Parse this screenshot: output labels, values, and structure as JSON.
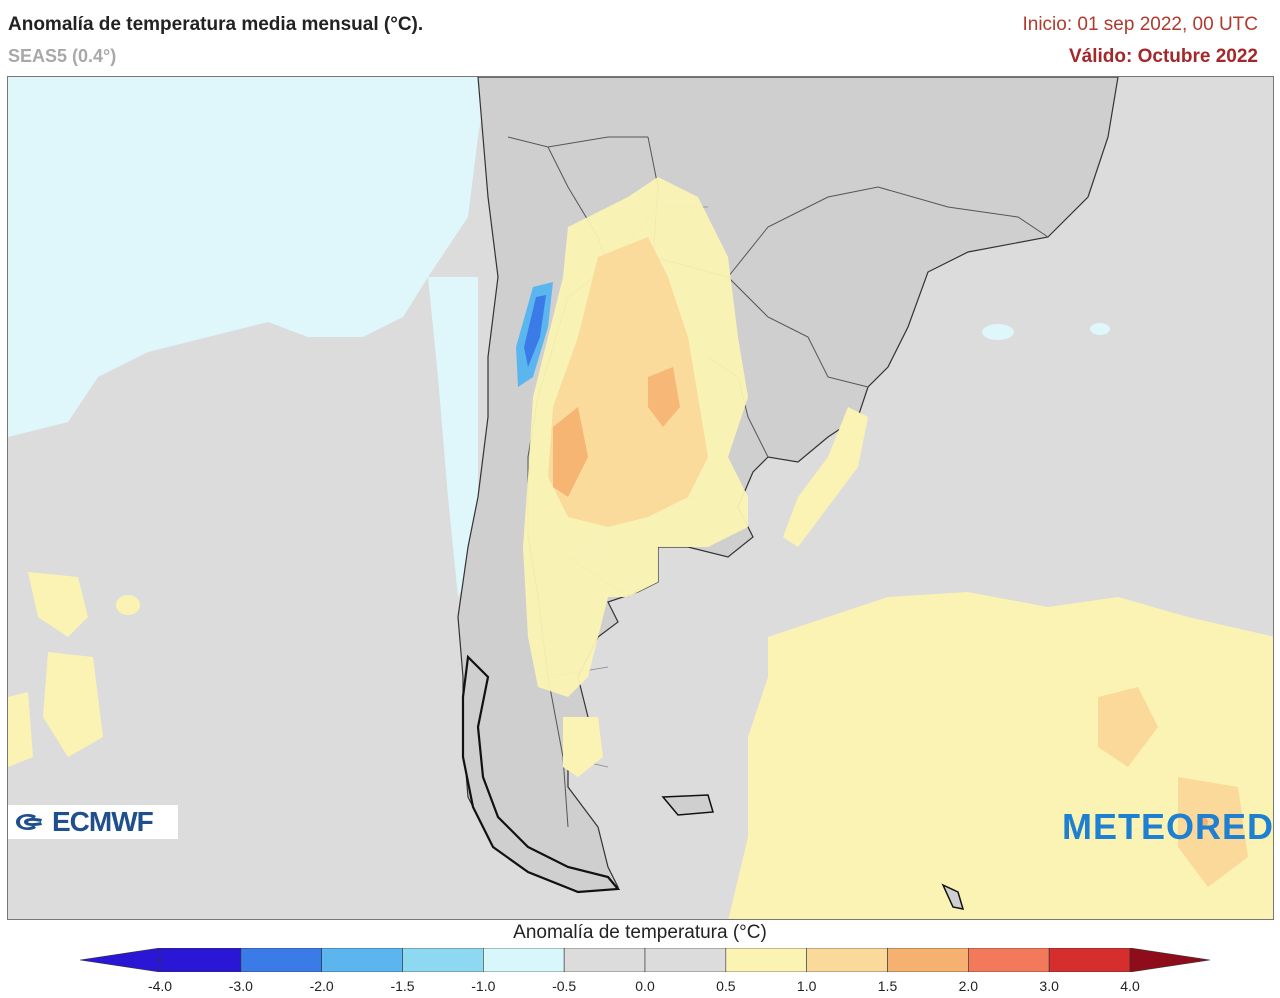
{
  "header": {
    "title": "Anomalía de temperatura media mensual (°C).",
    "model": "SEAS5 (0.4°)",
    "start": "Inicio: 01 sep 2022, 00 UTC",
    "valid": "Válido: Octubre 2022"
  },
  "logos": {
    "ecmwf": "ECMWF",
    "meteored": "METEORED"
  },
  "legend": {
    "title": "Anomalía de temperatura (°C)",
    "ticks": [
      "-4.0",
      "-3.0",
      "-2.0",
      "-1.5",
      "-1.0",
      "-0.5",
      "0.0",
      "0.5",
      "1.0",
      "1.5",
      "2.0",
      "3.0",
      "4.0"
    ],
    "colors": [
      "#2a17d6",
      "#3b7be8",
      "#5bb6f0",
      "#8ed9f2",
      "#d8f7fb",
      "#dcdcdc",
      "#dcdcdc",
      "#fbf3b3",
      "#fad99a",
      "#f6b070",
      "#f27a5a",
      "#d62d2d",
      "#8f0d1a"
    ]
  },
  "map_colors": {
    "ocean_neutral": "#dcdcdc",
    "pacific_cool": "#dff7fb",
    "land": "#cfcfcf",
    "warm_light": "#fbf3b3",
    "warm_mid": "#fad99a",
    "warm_high": "#f6b070",
    "cool_mid": "#5bb6f0",
    "cool_high": "#3b7be8"
  }
}
